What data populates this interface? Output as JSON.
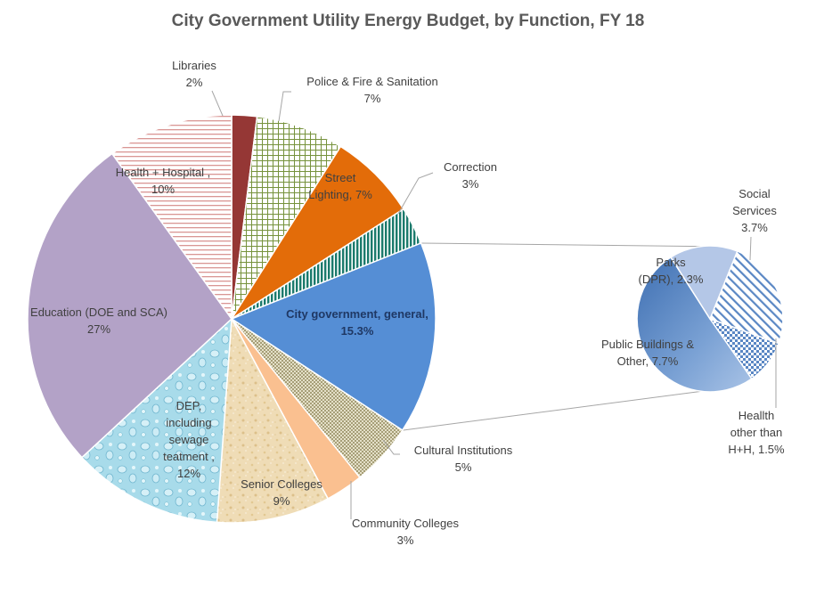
{
  "chart_data": {
    "type": "pie",
    "subtype": "pie-of-pie",
    "title": "City Government Utility Energy Budget, by Function, FY 18",
    "main_slices": [
      {
        "id": "libraries",
        "label_lines": [
          "Libraries",
          "2%"
        ],
        "value": 2,
        "color": "#953735",
        "pattern": "solid"
      },
      {
        "id": "police",
        "label_lines": [
          "Police & Fire & Sanitation",
          "7%"
        ],
        "value": 7,
        "color": "#76923c",
        "pattern": "grid"
      },
      {
        "id": "street",
        "label_lines": [
          "Street",
          "Lighting, 7%"
        ],
        "value": 7,
        "color": "#e36c09",
        "pattern": "solid"
      },
      {
        "id": "correction",
        "label_lines": [
          "Correction",
          "3%"
        ],
        "value": 3,
        "color": "#1b7a6c",
        "pattern": "vstripe"
      },
      {
        "id": "citygov",
        "label_lines": [
          "City government, general,",
          "15.3%"
        ],
        "value": 15.3,
        "color": "#558ed5",
        "pattern": "solid",
        "bold": true
      },
      {
        "id": "cultural",
        "label_lines": [
          "Cultural Institutions",
          "5%"
        ],
        "value": 5,
        "color": "#948a54",
        "pattern": "dots"
      },
      {
        "id": "community",
        "label_lines": [
          "Community Colleges",
          "3%"
        ],
        "value": 3,
        "color": "#fac090",
        "pattern": "solid"
      },
      {
        "id": "senior",
        "label_lines": [
          "Senior Colleges",
          "9%"
        ],
        "value": 9,
        "color": "#e8d3a8",
        "pattern": "sand"
      },
      {
        "id": "dep",
        "label_lines": [
          "DEP,",
          "including",
          "sewage",
          "teatment ,",
          "12%"
        ],
        "value": 12,
        "color": "#a7d9e8",
        "pattern": "drops"
      },
      {
        "id": "education",
        "label_lines": [
          "Education (DOE and SCA)",
          "27%"
        ],
        "value": 27,
        "color": "#b3a2c7",
        "pattern": "solid"
      },
      {
        "id": "health",
        "label_lines": [
          "Health + Hospital ,",
          "10%"
        ],
        "value": 10,
        "color": "#d99694",
        "pattern": "hstripe"
      }
    ],
    "secondary_slices": [
      {
        "id": "social",
        "label_lines": [
          "Social",
          "Services",
          "3.7%"
        ],
        "value": 3.7,
        "color": "#4f81bd",
        "pattern": "dstripe"
      },
      {
        "id": "health2",
        "label_lines": [
          "Heallth",
          "other than",
          "H+H, 1.5%"
        ],
        "value": 1.5,
        "color": "#4f81bd",
        "pattern": "checker"
      },
      {
        "id": "public",
        "label_lines": [
          "Public Buildings &",
          "Other, 7.7%"
        ],
        "value": 7.7,
        "color": "#5a87c4",
        "pattern": "gradient"
      },
      {
        "id": "parks",
        "label_lines": [
          "Parks",
          "(DPR), 2.3%"
        ],
        "value": 2.3,
        "color": "#b4c7e7",
        "pattern": "solid"
      }
    ],
    "legend": "none",
    "grid": false
  }
}
